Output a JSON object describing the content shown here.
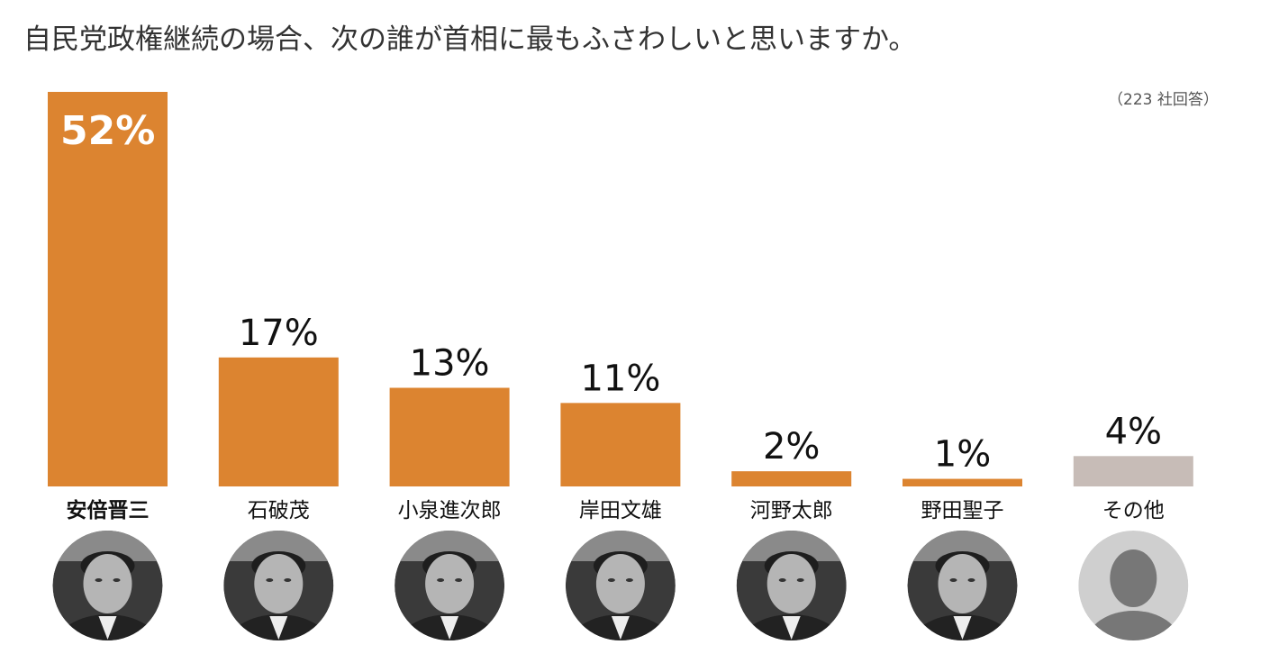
{
  "title": "自民党政権継続の場合、次の誰が首相に最もふさわしいと思いますか。",
  "note": "（223 社回答）",
  "colors": {
    "bar": "#DC8430",
    "other_bar": "#C7BCB7",
    "first_label": "#ffffff"
  },
  "chart_data": {
    "type": "bar",
    "title": "自民党政権継続の場合、次の誰が首相に最もふさわしいと思いますか。",
    "categories": [
      "安倍晋三",
      "石破茂",
      "小泉進次郎",
      "岸田文雄",
      "河野太郎",
      "野田聖子",
      "その他"
    ],
    "values": [
      52,
      17,
      13,
      11,
      2,
      1,
      4
    ],
    "value_labels": [
      "52%",
      "17%",
      "13%",
      "11%",
      "2%",
      "1%",
      "4%"
    ],
    "unit": "%",
    "ylim": [
      0,
      52
    ],
    "grid": false,
    "annotation": "（223 社回答）"
  }
}
